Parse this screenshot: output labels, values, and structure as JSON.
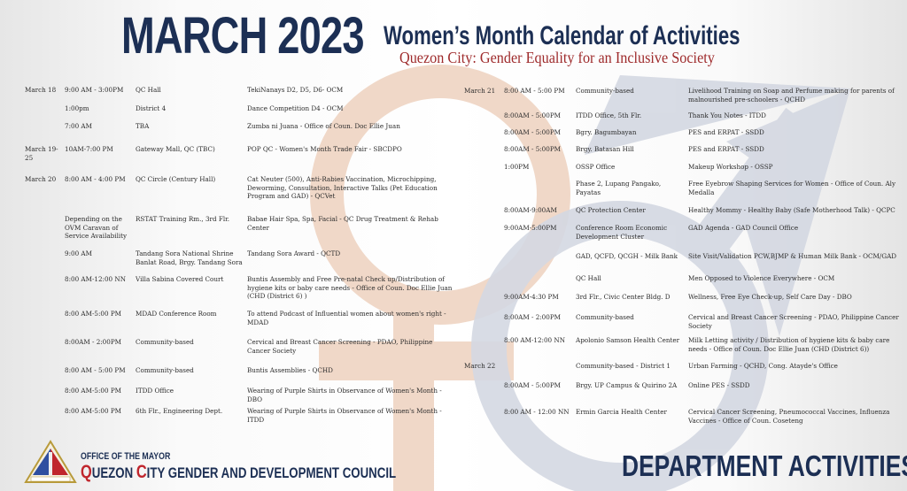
{
  "header": {
    "title": "MARCH 2023",
    "subtitle": "Women’s Month Calendar of Activities",
    "tagline": "Quezon City: Gender Equality for an Inclusive Society"
  },
  "colors": {
    "navy": "#1c2f54",
    "red": "#9e2a2b",
    "female_symbol": "#f0d8c8",
    "male_symbol": "#d4d8e2"
  },
  "left_rows": [
    {
      "date": "March 18",
      "time": "9:00 AM - 3:00PM",
      "venue": "QC Hall",
      "activity": "TekiNanays D2, D5, D6- OCM"
    },
    {
      "date": "",
      "time": "1:00pm",
      "venue": "District 4",
      "activity": "Dance Competition D4 - OCM"
    },
    {
      "date": "",
      "time": "7:00 AM",
      "venue": "TBA",
      "activity": "Zumba ni Juana - Office of Coun. Doc Ellie Juan"
    },
    {
      "date": "March 19-25",
      "time": "10AM-7:00 PM",
      "venue": "Gateway Mall, QC (TBC)",
      "activity": "POP QC - Women's Month Trade Fair - SBCDPO"
    },
    {
      "date": "March 20",
      "time": "8:00 AM - 4:00 PM",
      "venue": "QC Circle (Century Hall)",
      "activity": "Cat Neuter (500), Anti-Rabies Vaccination, Microchipping, Deworming, Consultation, Interactive Talks (Pet Education Program and GAD) - QCVet"
    },
    {
      "date": "",
      "time": "Depending on the OVM Caravan of Service Availability",
      "venue": "RSTAT Training Rm., 3rd Flr.",
      "activity": "Babae Hair Spa, Spa, Facial - QC Drug Treatment & Rehab Center"
    },
    {
      "date": "",
      "time": "9:00 AM",
      "venue": "Tandang Sora National Shrine Banlat Road, Brgy. Tandang Sora",
      "activity": "Tandang Sora Award - QCTD"
    },
    {
      "date": "",
      "time": "8:00 AM-12:00 NN",
      "venue": "Villa Sabina Covered Court",
      "activity": "Buntis Assembly and Free Pre-natal Check up/Distribution of hygiene kits or baby care needs - Office of Coun. Doc Ellie Juan (CHD (District 6) )"
    },
    {
      "date": "",
      "time": "8:00 AM-5:00 PM",
      "venue": "MDAD Conference Room",
      "activity": "To attend Podcast of Influential women about women's right - MDAD"
    },
    {
      "date": "",
      "time": "8:00AM - 2:00PM",
      "venue": "Community-based",
      "activity": "Cervical and Breast Cancer Screening - PDAO, Philippine Cancer Society"
    },
    {
      "date": "",
      "time": "8:00 AM - 5:00 PM",
      "venue": "Community-based",
      "activity": "Buntis Assemblies - QCHD"
    },
    {
      "date": "",
      "time": "8:00 AM-5:00 PM",
      "venue": "ITDD Office",
      "activity": "Wearing of Purple Shirts in Observance of Women's Month - DBO"
    },
    {
      "date": "",
      "time": "8:00 AM-5:00 PM",
      "venue": "6th Flr., Engineering Dept.",
      "activity": "Wearing of Purple Shirts in Observance of Women's Month - ITDD"
    }
  ],
  "right_rows": [
    {
      "date": "March 21",
      "time": "8:00 AM - 5:00 PM",
      "venue": "Community-based",
      "activity": "Livelihood Training on Soap and Perfume making for parents of malnourished pre-schoolers - QCHD"
    },
    {
      "date": "",
      "time": "8:00AM - 5:00PM",
      "venue": "ITDD Office, 5th Flr.",
      "activity": "Thank You Notes - ITDD"
    },
    {
      "date": "",
      "time": "8:00AM - 5:00PM",
      "venue": "Bgry. Bagumbayan",
      "activity": "PES and ERPAT - SSDD"
    },
    {
      "date": "",
      "time": "8:00AM - 5:00PM",
      "venue": "Brgy. Batasan Hill",
      "activity": "PES and ERPAT - SSDD"
    },
    {
      "date": "",
      "time": "1:00PM",
      "venue": "OSSP Office",
      "activity": "Makeup Workshop - OSSP"
    },
    {
      "date": "",
      "time": "",
      "venue": "Phase 2, Lupang Pangako, Payatas",
      "activity": "Free Eyebrow Shaping Services for Women - Office of Coun. Aly Medalla"
    },
    {
      "date": "",
      "time": "8:00AM-9:00AM",
      "venue": "QC Protection Center",
      "activity": "Healthy Mommy - Healthy Baby (Safe Motherhood Talk) - QCPC"
    },
    {
      "date": "",
      "time": "9:00AM-5:00PM",
      "venue": "Conference Room Economic Development Cluster",
      "activity": "GAD Agenda - GAD Council Office"
    },
    {
      "date": "",
      "time": "",
      "venue": "GAD, QCFD, QCGH - Milk Bank",
      "activity": "Site Visit/Validation PCW,BJMP & Human Milk Bank - OCM/GAD"
    },
    {
      "date": "",
      "time": "",
      "venue": "QC Hall",
      "activity": "Men Opposed to Violence Everywhere - OCM"
    },
    {
      "date": "",
      "time": "9:00AM-4:30 PM",
      "venue": "3rd Flr., Civic Center Bldg. D",
      "activity": "Wellness, Free Eye Check-up, Self Care Day - DBO"
    },
    {
      "date": "",
      "time": "8:00AM - 2:00PM",
      "venue": "Community-based",
      "activity": "Cervical and Breast Cancer Screening - PDAO, Philippine Cancer Society"
    },
    {
      "date": "",
      "time": "8:00 AM-12:00 NN",
      "venue": "Apolonio Samson Health Center",
      "activity": "Milk Letting activity / Distribution of hygiene kits & baby care needs - Office of Coun. Doc Ellie Juan (CHD (District 6))"
    },
    {
      "date": "March 22",
      "time": "",
      "venue": "Community-based - District 1",
      "activity": "Urban Farming - QCHD, Cong. Atayde's Office"
    },
    {
      "date": "",
      "time": "8:00AM - 5:00PM",
      "venue": "Brgy. UP Campus & Quirino 2A",
      "activity": "Online PES - SSDD"
    },
    {
      "date": "",
      "time": "8:00 AM - 12:00 NN",
      "venue": "Ermin Garcia Health Center",
      "activity": "Cervical Cancer Screening, Pneumococcal Vaccines, Influenza Vaccines - Office of Coun. Coseteng"
    }
  ],
  "footer": {
    "office": "OFFICE OF THE MAYOR",
    "council_q": "Q",
    "council_uezon": "UEZON ",
    "council_c": "C",
    "council_rest": "ITY GENDER AND DEVELOPMENT COUNCIL",
    "department": "DEPARTMENT ACTIVITIES",
    "seal_text": "LUNGSOD QUEZON PILIPINAS"
  }
}
